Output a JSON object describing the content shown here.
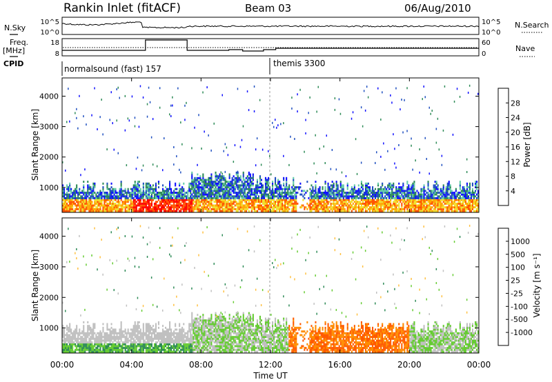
{
  "header": {
    "station": "Rankin Inlet (fitACF)",
    "beam": "Beam 03",
    "date": "06/Aug/2010"
  },
  "left_labels": {
    "nsky": "N.Sky",
    "freq": "Freq.",
    "mhz": "[MHz]",
    "cpid": "CPID"
  },
  "right_labels": {
    "nsearch": "N.Search",
    "nave": "Nave"
  },
  "nsky_ticks": [
    "10^5",
    "10^0"
  ],
  "nsearch_ticks": [
    "10^5",
    "10^0"
  ],
  "freq_ticks": [
    "18",
    "8"
  ],
  "nave_ticks": [
    "60",
    "0"
  ],
  "cpid": {
    "mode1": "normalsound (fast) 157",
    "mode2": "themis 3300"
  },
  "colors": {
    "dotted_marker": "#999999",
    "power_scale": [
      "#1010ff",
      "#2050c0",
      "#2e8b57",
      "#66cdaa",
      "#f0e030",
      "#ffa500",
      "#ff5500",
      "#ff0000"
    ],
    "velocity_scale": [
      "#ff0000",
      "#ff5a00",
      "#ff8c00",
      "#ffc040",
      "#c0c0c0",
      "#66cc33",
      "#2e8b57",
      "#3070b0",
      "#1010ff"
    ]
  },
  "chart_data": [
    {
      "type": "heatmap",
      "title": "Power",
      "xlabel": "",
      "ylabel": "Slant Range [km]",
      "xticks": [
        "00:00",
        "04:00",
        "08:00",
        "12:00",
        "16:00",
        "20:00",
        "00:00"
      ],
      "xlim_hours": [
        0,
        24
      ],
      "ylim": [
        180,
        4600
      ],
      "yticks": [
        1000,
        2000,
        3000,
        4000
      ],
      "colorbar_label": "Power [dB]",
      "colorbar_ticks": [
        4,
        8,
        12,
        16,
        20,
        24,
        28
      ],
      "colorbar_range": [
        0,
        30
      ],
      "grid": false
    },
    {
      "type": "heatmap",
      "title": "Velocity",
      "xlabel": "Time UT",
      "ylabel": "Slant Range [km]",
      "xticks": [
        "00:00",
        "04:00",
        "08:00",
        "12:00",
        "16:00",
        "20:00",
        "00:00"
      ],
      "xlim_hours": [
        0,
        24
      ],
      "ylim": [
        180,
        4600
      ],
      "yticks": [
        1000,
        2000,
        3000,
        4000
      ],
      "colorbar_label": "Velocity [m s⁻¹]",
      "colorbar_ticks": [
        -1000,
        -500,
        -100,
        -25,
        25,
        100,
        500,
        1000
      ],
      "grid": false
    }
  ]
}
